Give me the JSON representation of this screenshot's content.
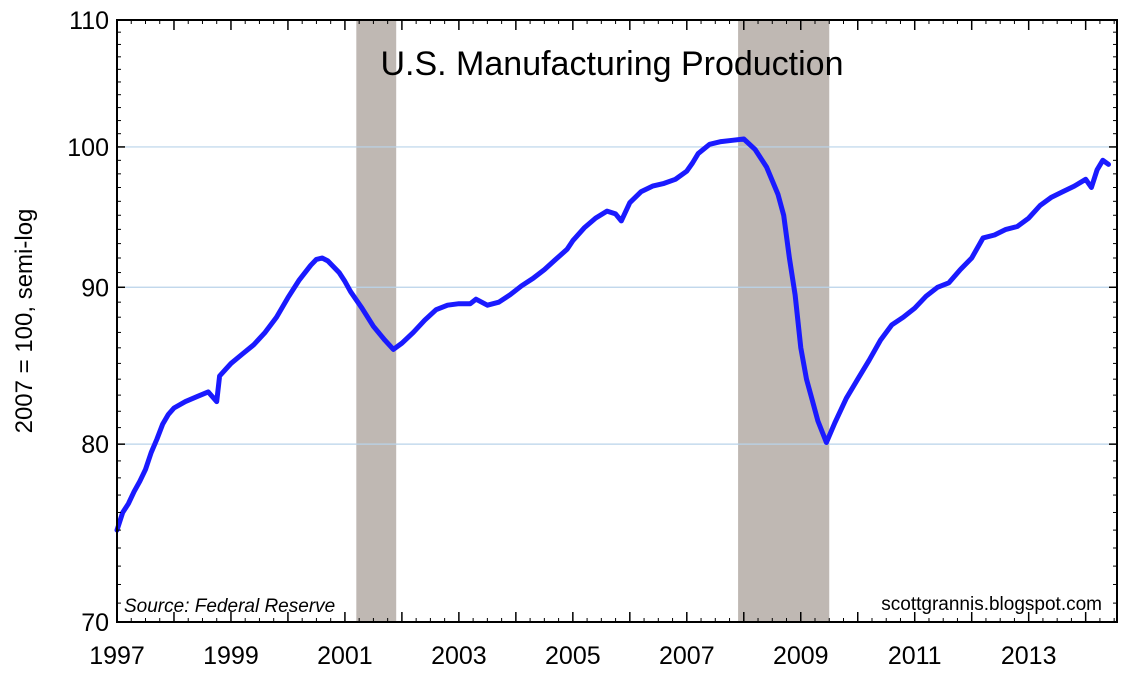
{
  "chart_data": {
    "type": "line",
    "title": "U.S. Manufacturing Production",
    "ylabel": "2007 = 100, semi-log",
    "xlabel": "",
    "y_scale": "log",
    "ylim": [
      70,
      110
    ],
    "xlim": [
      1997.0,
      2014.55
    ],
    "y_ticks": [
      70,
      80,
      90,
      100,
      110
    ],
    "x_ticks": [
      1997,
      1999,
      2001,
      2003,
      2005,
      2007,
      2009,
      2011,
      2013
    ],
    "x_tick_labels": [
      "1997",
      "1999",
      "2001",
      "2003",
      "2005",
      "2007",
      "2009",
      "2011",
      "2013"
    ],
    "y_tick_labels": [
      "70",
      "80",
      "90",
      "100",
      "110"
    ],
    "grid": "horizontal",
    "recessions": [
      {
        "start": 2001.2,
        "end": 2001.9
      },
      {
        "start": 2007.9,
        "end": 2009.5
      }
    ],
    "annotations": {
      "source": "Source: Federal Reserve",
      "watermark": "scottgrannis.blogspot.com"
    },
    "series": [
      {
        "name": "U.S. Manufacturing Production",
        "color": "#1a1aff",
        "x": [
          1997.0,
          1997.1,
          1997.2,
          1997.3,
          1997.4,
          1997.5,
          1997.6,
          1997.7,
          1997.8,
          1997.9,
          1998.0,
          1998.2,
          1998.4,
          1998.6,
          1998.75,
          1998.8,
          1998.9,
          1999.0,
          1999.2,
          1999.4,
          1999.6,
          1999.8,
          2000.0,
          2000.2,
          2000.4,
          2000.5,
          2000.6,
          2000.7,
          2000.8,
          2000.9,
          2001.0,
          2001.1,
          2001.3,
          2001.5,
          2001.7,
          2001.85,
          2002.0,
          2002.2,
          2002.4,
          2002.6,
          2002.8,
          2003.0,
          2003.2,
          2003.3,
          2003.5,
          2003.7,
          2003.9,
          2004.1,
          2004.3,
          2004.5,
          2004.7,
          2004.9,
          2005.0,
          2005.2,
          2005.4,
          2005.6,
          2005.75,
          2005.85,
          2006.0,
          2006.2,
          2006.4,
          2006.6,
          2006.8,
          2007.0,
          2007.1,
          2007.2,
          2007.4,
          2007.6,
          2007.8,
          2008.0,
          2008.2,
          2008.4,
          2008.6,
          2008.7,
          2008.8,
          2008.9,
          2009.0,
          2009.1,
          2009.2,
          2009.3,
          2009.45,
          2009.6,
          2009.8,
          2010.0,
          2010.2,
          2010.4,
          2010.6,
          2010.8,
          2011.0,
          2011.2,
          2011.4,
          2011.6,
          2011.8,
          2012.0,
          2012.2,
          2012.4,
          2012.6,
          2012.8,
          2013.0,
          2013.2,
          2013.4,
          2013.6,
          2013.8,
          2014.0,
          2014.1,
          2014.2,
          2014.3,
          2014.4
        ],
        "values": [
          75.0,
          76.0,
          76.5,
          77.2,
          77.8,
          78.5,
          79.5,
          80.3,
          81.2,
          81.8,
          82.2,
          82.6,
          82.9,
          83.2,
          82.6,
          84.2,
          84.6,
          85.0,
          85.6,
          86.2,
          87.0,
          88.0,
          89.3,
          90.5,
          91.5,
          91.9,
          92.0,
          91.8,
          91.4,
          91.0,
          90.4,
          89.7,
          88.6,
          87.4,
          86.5,
          85.9,
          86.3,
          87.0,
          87.8,
          88.5,
          88.8,
          88.9,
          88.9,
          89.2,
          88.8,
          89.0,
          89.5,
          90.1,
          90.6,
          91.2,
          91.9,
          92.6,
          93.2,
          94.1,
          94.8,
          95.3,
          95.1,
          94.6,
          95.9,
          96.7,
          97.1,
          97.3,
          97.6,
          98.2,
          98.8,
          99.5,
          100.2,
          100.4,
          100.5,
          100.6,
          99.8,
          98.5,
          96.5,
          95.0,
          92.0,
          89.5,
          86.0,
          84.0,
          82.7,
          81.4,
          80.1,
          81.3,
          82.8,
          84.0,
          85.2,
          86.5,
          87.5,
          88.0,
          88.6,
          89.4,
          90.0,
          90.3,
          91.2,
          92.0,
          93.4,
          93.6,
          94.0,
          94.2,
          94.8,
          95.7,
          96.3,
          96.7,
          97.1,
          97.6,
          97.0,
          98.3,
          99.0,
          98.7
        ]
      }
    ]
  }
}
